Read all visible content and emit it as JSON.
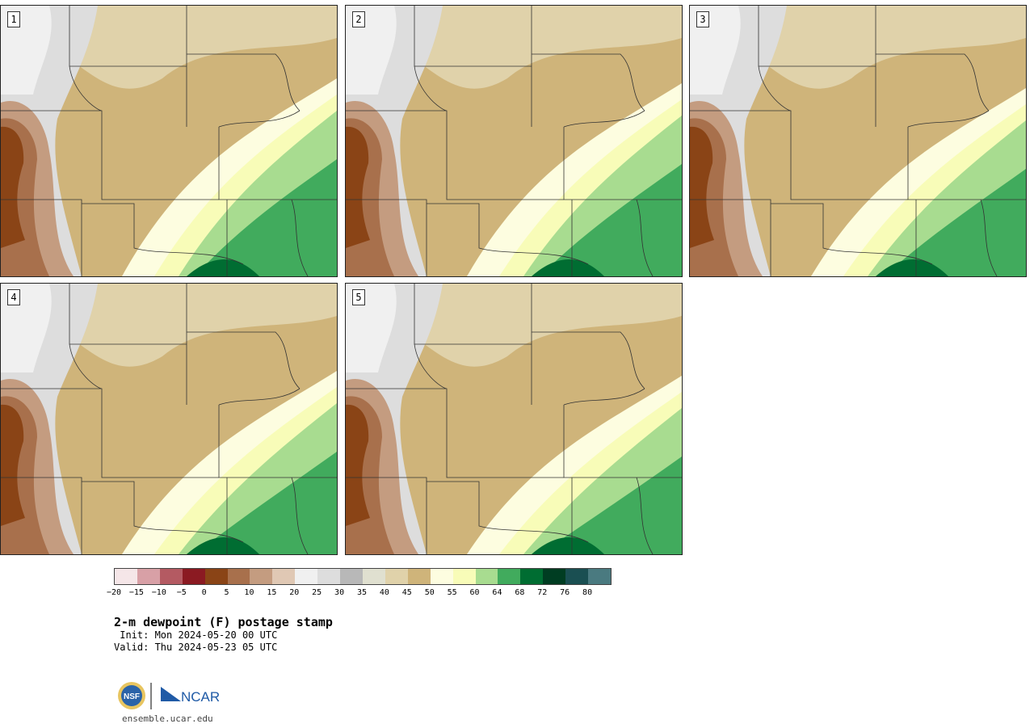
{
  "title": "2-m dewpoint (F) postage stamp",
  "init": " Init: Mon 2024-05-20 00 UTC",
  "valid": "Valid: Thu 2024-05-23 05 UTC",
  "site": "ensemble.ucar.edu",
  "logos": {
    "nsf": "NSF",
    "ncar": "NCAR"
  },
  "panels": [
    {
      "label": "1",
      "shift": 0
    },
    {
      "label": "2",
      "shift": 1
    },
    {
      "label": "3",
      "shift": 2
    },
    {
      "label": "4",
      "shift": 3
    },
    {
      "label": "5",
      "shift": 4
    }
  ],
  "colorbar": {
    "ticks": [
      "−20",
      "−15",
      "−10",
      "−5",
      "0",
      "5",
      "10",
      "15",
      "20",
      "25",
      "30",
      "35",
      "40",
      "45",
      "50",
      "55",
      "60",
      "64",
      "68",
      "72",
      "76",
      "80"
    ],
    "colors": [
      "#f5e6e8",
      "#d8a0a6",
      "#b45a62",
      "#8b1a22",
      "#8a4416",
      "#a8704c",
      "#c49c80",
      "#e0c8b4",
      "#f0f0f0",
      "#dddddd",
      "#b8b8b8",
      "#e0e0d0",
      "#e0d2aa",
      "#cfb47a",
      "#fdfde0",
      "#f8fcb8",
      "#a8dc90",
      "#41ab5d",
      "#006d32",
      "#003d22",
      "#1a4f52",
      "#4a7a80"
    ]
  }
}
